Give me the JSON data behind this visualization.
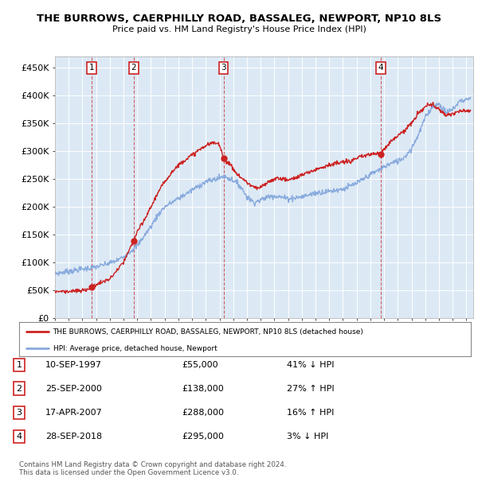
{
  "title1": "THE BURROWS, CAERPHILLY ROAD, BASSALEG, NEWPORT, NP10 8LS",
  "title2": "Price paid vs. HM Land Registry's House Price Index (HPI)",
  "bg_color": "#dce9f5",
  "ylabel_ticks": [
    "£0",
    "£50K",
    "£100K",
    "£150K",
    "£200K",
    "£250K",
    "£300K",
    "£350K",
    "£400K",
    "£450K"
  ],
  "ytick_vals": [
    0,
    50000,
    100000,
    150000,
    200000,
    250000,
    300000,
    350000,
    400000,
    450000
  ],
  "ylim": [
    0,
    470000
  ],
  "xlim_start": 1995.0,
  "xlim_end": 2025.5,
  "sale_dates": [
    1997.69,
    2000.73,
    2007.29,
    2018.74
  ],
  "sale_prices": [
    55000,
    138000,
    288000,
    295000
  ],
  "sale_labels": [
    "1",
    "2",
    "3",
    "4"
  ],
  "legend_line1": "THE BURROWS, CAERPHILLY ROAD, BASSALEG, NEWPORT, NP10 8LS (detached house)",
  "legend_line2": "HPI: Average price, detached house, Newport",
  "table_data": [
    [
      "1",
      "10-SEP-1997",
      "£55,000",
      "41% ↓ HPI"
    ],
    [
      "2",
      "25-SEP-2000",
      "£138,000",
      "27% ↑ HPI"
    ],
    [
      "3",
      "17-APR-2007",
      "£288,000",
      "16% ↑ HPI"
    ],
    [
      "4",
      "28-SEP-2018",
      "£295,000",
      "3% ↓ HPI"
    ]
  ],
  "footer": "Contains HM Land Registry data © Crown copyright and database right 2024.\nThis data is licensed under the Open Government Licence v3.0.",
  "red_color": "#cc2222",
  "blue_color": "#88aadd",
  "grid_color": "#ffffff"
}
